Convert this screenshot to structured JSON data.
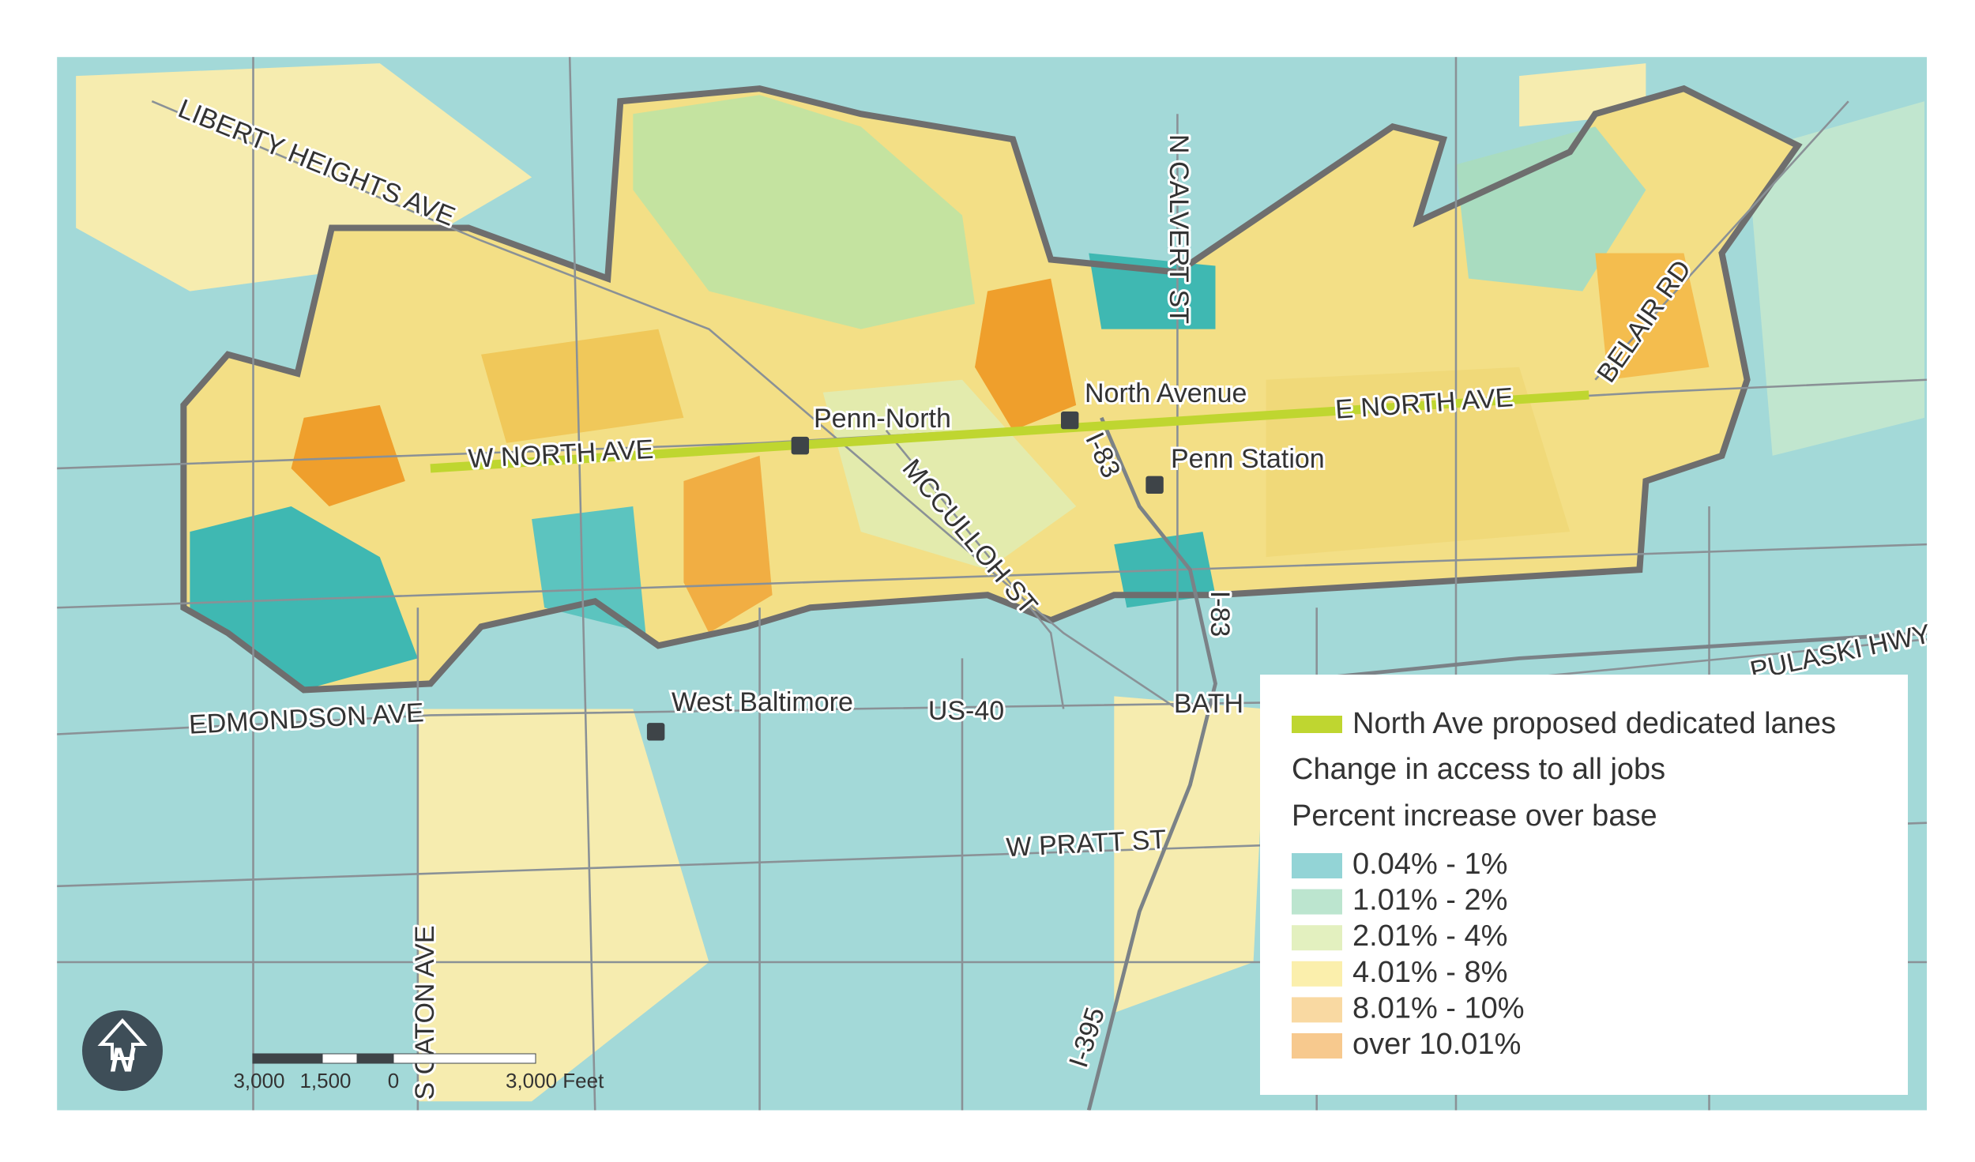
{
  "map": {
    "street_labels": [
      "LIBERTY HEIGHTS AVE",
      "N CALVERT ST",
      "BELAIR RD",
      "E NORTH AVE",
      "W NORTH AVE",
      "I-83",
      "MCCULLOH ST",
      "I-83",
      "BATH",
      "PULASKI HWY",
      "EDMONDSON AVE",
      "US-40",
      "W PRATT ST",
      "S CATON AVE",
      "I-395"
    ],
    "stations": [
      "Penn-North",
      "North Avenue",
      "Penn Station",
      "West Baltimore"
    ]
  },
  "legend": {
    "line_label": "North Ave proposed dedicated lanes",
    "line_color": "#bfd630",
    "title": "Change in access to all jobs",
    "subtitle": "Percent increase over base",
    "classes": [
      {
        "label": "0.04% - 1%",
        "color": "#93d4d6"
      },
      {
        "label": "1.01% - 2%",
        "color": "#bce5cf"
      },
      {
        "label": "2.01% - 4%",
        "color": "#e3f0bf"
      },
      {
        "label": "4.01% - 8%",
        "color": "#fbefac"
      },
      {
        "label": "8.01% - 10%",
        "color": "#f9d9a2"
      },
      {
        "label": "over 10.01%",
        "color": "#f7c98e"
      }
    ]
  },
  "scale_bar": {
    "labels": [
      "3,000",
      "1,500",
      "0",
      "3,000 Feet"
    ]
  },
  "north_arrow": "N"
}
